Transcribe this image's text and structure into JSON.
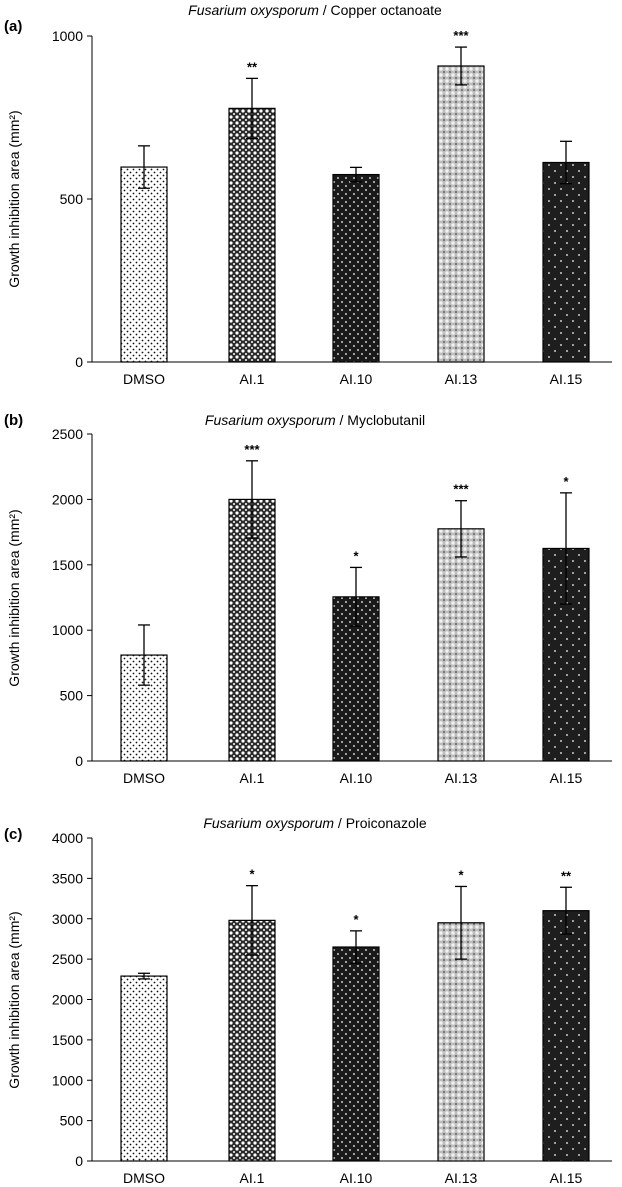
{
  "chart_data": [
    {
      "type": "bar",
      "panel_label": "(a)",
      "title_italic": "Fusarium oxysporum",
      "title_rest": " / Copper octanoate",
      "ylabel": "Growth inhibition area (mm²)",
      "xlabel": "",
      "ylim": [
        0,
        1000
      ],
      "yticks": [
        0,
        500,
        1000
      ],
      "categories": [
        "DMSO",
        "AI.1",
        "AI.10",
        "AI.13",
        "AI.15"
      ],
      "values": [
        598,
        778,
        575,
        908,
        612
      ],
      "errors": [
        65,
        92,
        22,
        58,
        65
      ],
      "significance": [
        "",
        "**",
        "",
        "***",
        ""
      ],
      "patterns": [
        "dots-light",
        "cross-dark",
        "dots-inverse",
        "cross-light",
        "dots-inverse-sparse"
      ],
      "grid": false
    },
    {
      "type": "bar",
      "panel_label": "(b)",
      "title_italic": "Fusarium oxysporum",
      "title_rest": " / Myclobutanil",
      "ylabel": "Growth inhibition area (mm²)",
      "xlabel": "",
      "ylim": [
        0,
        2500
      ],
      "yticks": [
        0,
        500,
        1000,
        1500,
        2000,
        2500
      ],
      "categories": [
        "DMSO",
        "AI.1",
        "AI.10",
        "AI.13",
        "AI.15"
      ],
      "values": [
        810,
        2000,
        1255,
        1775,
        1625
      ],
      "errors": [
        230,
        295,
        225,
        215,
        425
      ],
      "significance": [
        "",
        "***",
        "*",
        "***",
        "*"
      ],
      "patterns": [
        "dots-light",
        "cross-dark",
        "dots-inverse",
        "cross-light",
        "dots-inverse-sparse"
      ],
      "grid": false
    },
    {
      "type": "bar",
      "panel_label": "(c)",
      "title_italic": "Fusarium oxysporum",
      "title_rest": " / Proiconazole",
      "ylabel": "Growth inhibition area (mm²)",
      "xlabel": "",
      "ylim": [
        0,
        4000
      ],
      "yticks": [
        0,
        500,
        1000,
        1500,
        2000,
        2500,
        3000,
        3500,
        4000
      ],
      "categories": [
        "DMSO",
        "AI.1",
        "AI.10",
        "AI.13",
        "AI.15"
      ],
      "values": [
        2290,
        2980,
        2650,
        2950,
        3100
      ],
      "errors": [
        35,
        430,
        200,
        450,
        290
      ],
      "significance": [
        "",
        "*",
        "*",
        "*",
        "**"
      ],
      "patterns": [
        "dots-light",
        "cross-dark",
        "dots-inverse",
        "cross-light",
        "dots-inverse-sparse"
      ],
      "grid": false
    }
  ]
}
